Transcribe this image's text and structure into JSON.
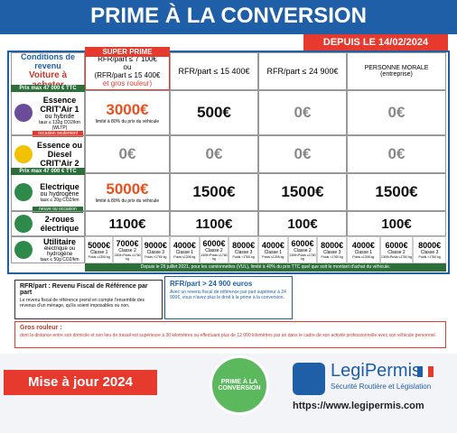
{
  "header": {
    "title": "PRIME À LA CONVERSION",
    "badge": "DEPUIS LE 14/02/2024"
  },
  "table": {
    "corner": {
      "top": "Conditions de revenu",
      "bottom": "Voiture à acheter"
    },
    "columns": [
      {
        "tag": "SUPER PRIME",
        "lines": [
          "RFR/part ≤ 7 100€",
          "ou",
          "(RFR/part ≤ 15 400€",
          "et gros rouleur)"
        ]
      },
      {
        "lines": [
          "RFR/part ≤ 15 400€"
        ]
      },
      {
        "lines": [
          "RFR/part ≤ 24 900€"
        ]
      },
      {
        "lines": [
          "PERSONNE MORALE",
          "(entreprise)"
        ]
      }
    ],
    "rows": [
      {
        "tag": "Prix max 47 000 € TTC",
        "label": "Essence CRIT'Air 1",
        "sub": "ou hybride",
        "note": "taux ≤ 132g CO2/km (WLTP)",
        "badge": "occasion seulement",
        "values": [
          "3000€",
          "500€",
          "0€",
          "0€"
        ],
        "limit": "limité à 80% du prix du véhicule"
      },
      {
        "label": "Essence ou Diesel CRIT'Air 2",
        "values": [
          "0€",
          "0€",
          "0€",
          "0€"
        ]
      },
      {
        "tag": "Prix max 47 000 € TTC",
        "label": "Electrique",
        "sub": "ou hydrogène",
        "note": "taux ≤ 20g CO2/km",
        "badge": "neuve ou occasion",
        "values": [
          "5000€",
          "1500€",
          "1500€",
          "1500€"
        ],
        "limit": "limité à 80% du prix du véhicule"
      },
      {
        "label": "2-roues électrique",
        "values": [
          "1100€",
          "1100€",
          "100€",
          "100€"
        ]
      }
    ],
    "utility": {
      "label": "Utilitaire",
      "sub": "électrique ou hydrogène",
      "note": "taux ≤ 50g CO2/km",
      "classes": [
        {
          "name": "Classe 1",
          "weight": "Poids ≤1305 kg"
        },
        {
          "name": "Classe 2",
          "weight": "1305<Poids ≤1760 kg"
        },
        {
          "name": "Classe 3",
          "weight": "Poids >1760 kg"
        }
      ],
      "values": [
        [
          "5000€",
          "7000€",
          "9000€"
        ],
        [
          "4000€",
          "6000€",
          "8000€"
        ],
        [
          "4000€",
          "6000€",
          "8000€"
        ],
        [
          "4000€",
          "6000€",
          "8000€"
        ]
      ]
    },
    "footnote": "Depuis le 26 juillet 2021, pour les camionnettes (VUL), limité à 40% du prix TTC quel que soit le montant d'achat du véhicule."
  },
  "notes": [
    {
      "title": "RFR/part : Revenu Fiscal de Référence par part",
      "text": "Le revenu fiscal de référence prend en compte l'ensemble des revenus d'un ménage, qu'ils soient imposables ou non."
    },
    {
      "title": "RFR/part > 24 900 euros",
      "text": "Avec un revenu fiscal de référence par part supérieur à 24 900€, vous n'avez plus le droit à la prime à la conversion."
    },
    {
      "title": "Gros rouleur :",
      "text": "dont la distance entre son domicile et son lieu de travail est supérieure à 30 kilomètres ou effectuant plus de 12 000 kilomètres par an dans le cadre de son activité professionnelle avec son véhicule personnel."
    }
  ],
  "footer": {
    "update": "Mise à jour 2024",
    "stamp": "PRIME À LA CONVERSION",
    "brand": "LegiPermis",
    "tagline": "Sécurité Routière et Législation",
    "url": "https://www.legipermis.com"
  }
}
